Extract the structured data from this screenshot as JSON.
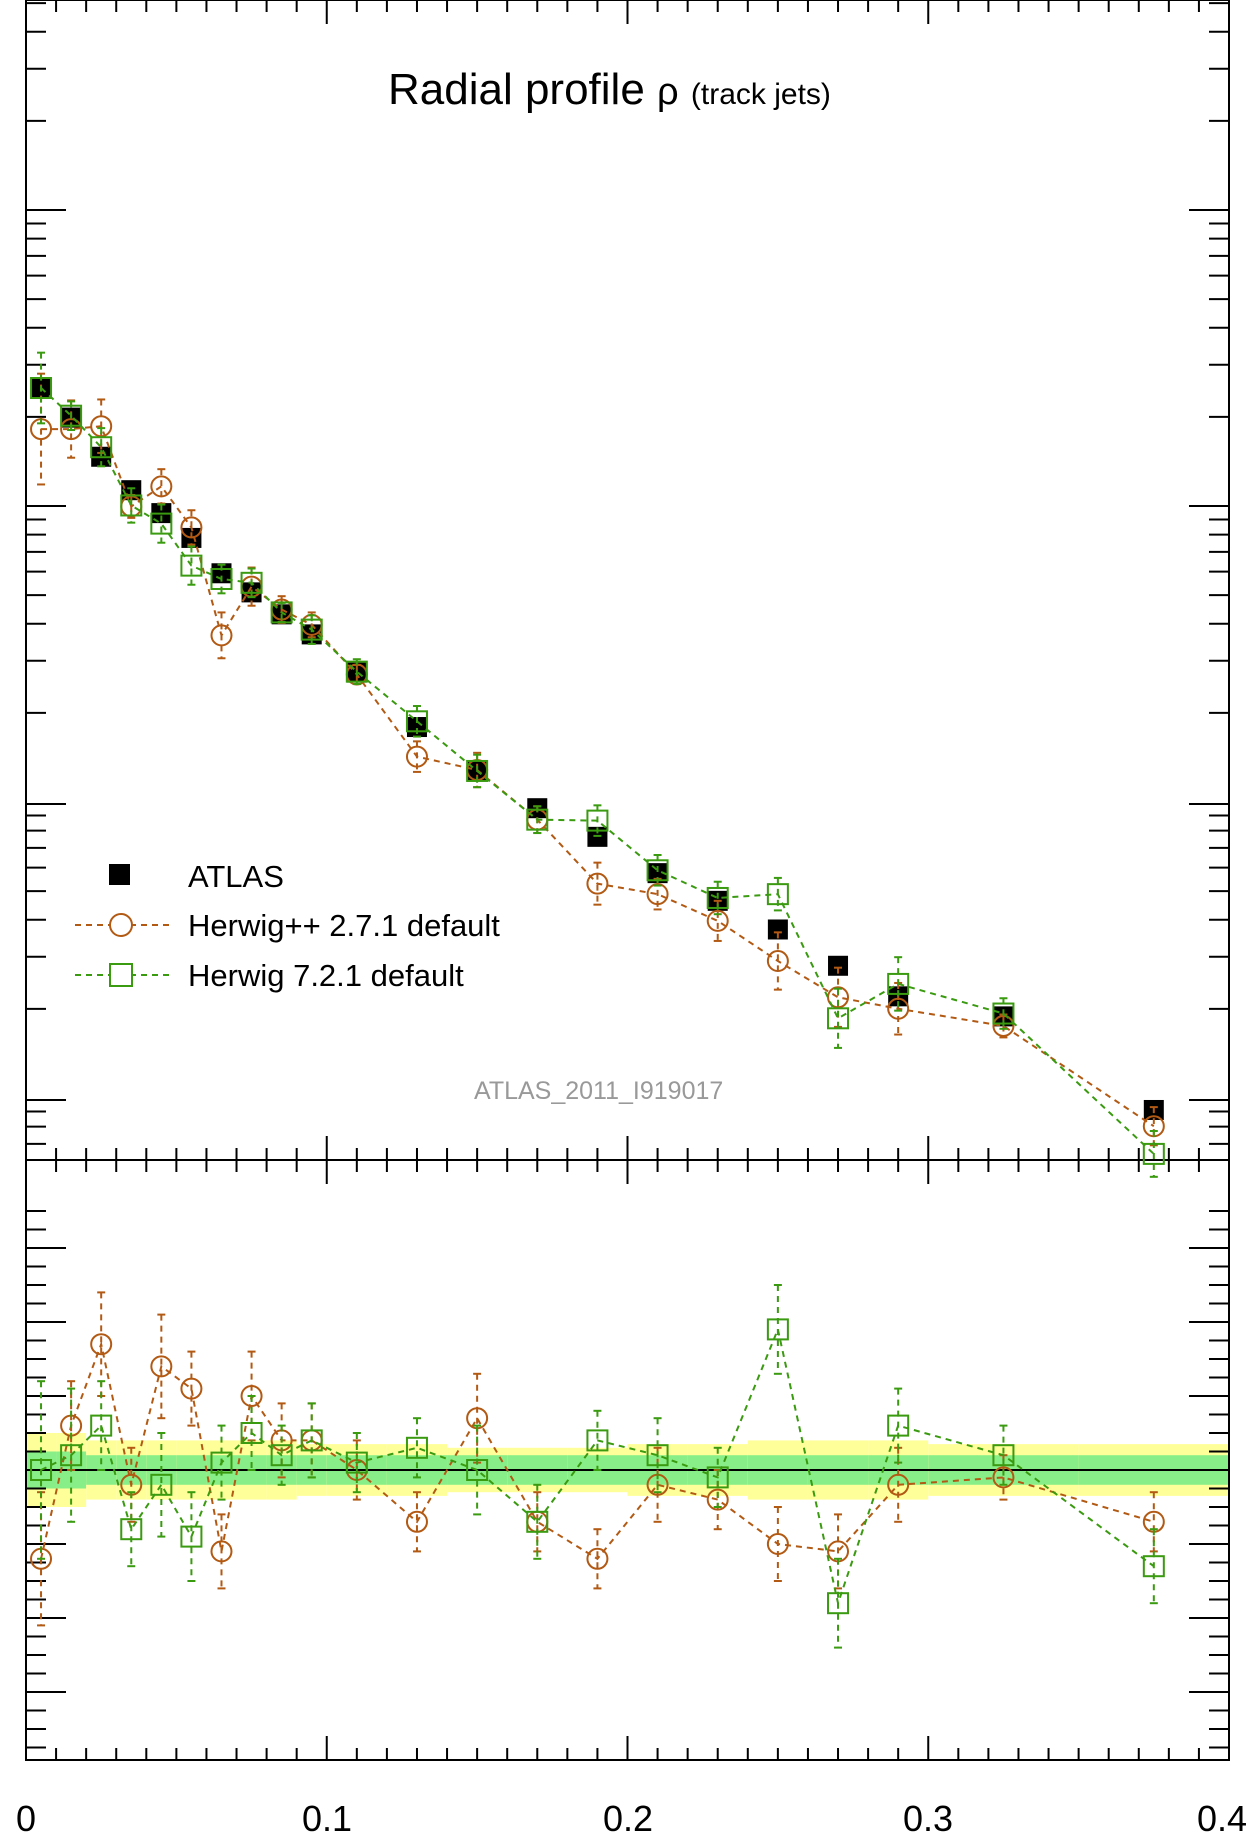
{
  "chart_data": [
    {
      "type": "scatter",
      "panel": "main",
      "title_main": "Radial profile",
      "title_symbol": "ρ",
      "title_sub": "(track jets)",
      "watermark": "ATLAS_2011_I919017",
      "xlim": [
        0,
        0.4
      ],
      "legend_position": "center-left",
      "series": [
        {
          "name": "ATLAS",
          "color": "#000000",
          "marker": "filled-square",
          "x": [
            0.005,
            0.015,
            0.025,
            0.035,
            0.045,
            0.055,
            0.065,
            0.075,
            0.085,
            0.095,
            0.11,
            0.13,
            0.15,
            0.17,
            0.19,
            0.21,
            0.23,
            0.25,
            0.27,
            0.29,
            0.325,
            0.375
          ],
          "y": [
            0.0,
            -0.31,
            -0.72,
            -1.07,
            -1.31,
            -1.57,
            -1.94,
            -2.14,
            -2.37,
            -2.58,
            -2.98,
            -3.55,
            -4.0,
            -4.4,
            -4.7,
            -5.08,
            -5.37,
            -5.67,
            -6.05,
            -6.37,
            -6.58,
            -7.56
          ]
        },
        {
          "name": "Herwig++ 2.7.1 default",
          "color": "#b25a14",
          "marker": "open-circle",
          "x": [
            0.005,
            0.015,
            0.025,
            0.035,
            0.045,
            0.055,
            0.065,
            0.075,
            0.085,
            0.095,
            0.11,
            0.13,
            0.15,
            0.17,
            0.19,
            0.21,
            0.23,
            0.25,
            0.27,
            0.29,
            0.325,
            0.375
          ],
          "y": [
            -0.43,
            -0.43,
            -0.4,
            -1.24,
            -1.03,
            -1.46,
            -2.59,
            -2.08,
            -2.32,
            -2.48,
            -3.0,
            -3.86,
            -4.0,
            -4.52,
            -5.19,
            -5.3,
            -5.58,
            -6.0,
            -6.38,
            -6.5,
            -6.68,
            -7.73
          ],
          "yerr": [
            0.58,
            0.3,
            0.28,
            0.12,
            0.18,
            0.18,
            0.24,
            0.2,
            0.14,
            0.13,
            0.1,
            0.16,
            0.18,
            0.14,
            0.22,
            0.16,
            0.21,
            0.3,
            0.31,
            0.27,
            0.12,
            0.2
          ]
        },
        {
          "name": "Herwig 7.2.1 default",
          "color": "#3a9a10",
          "marker": "open-square",
          "x": [
            0.005,
            0.015,
            0.025,
            0.035,
            0.045,
            0.055,
            0.065,
            0.075,
            0.085,
            0.095,
            0.11,
            0.13,
            0.15,
            0.17,
            0.19,
            0.21,
            0.23,
            0.25,
            0.27,
            0.29,
            0.325,
            0.375
          ],
          "y": [
            0.0,
            -0.29,
            -0.62,
            -1.23,
            -1.42,
            -1.86,
            -2.0,
            -2.04,
            -2.35,
            -2.53,
            -2.97,
            -3.49,
            -4.01,
            -4.52,
            -4.53,
            -5.05,
            -5.34,
            -5.3,
            -6.6,
            -6.24,
            -6.55,
            -8.02
          ],
          "yerr": [
            0.37,
            0.15,
            0.2,
            0.18,
            0.2,
            0.2,
            0.15,
            0.15,
            0.1,
            0.15,
            0.13,
            0.16,
            0.17,
            0.14,
            0.16,
            0.16,
            0.17,
            0.17,
            0.31,
            0.28,
            0.16,
            0.24
          ]
        }
      ]
    },
    {
      "type": "scatter",
      "panel": "ratio",
      "xlim": [
        0,
        0.4
      ],
      "series": [
        {
          "name": "Herwig++ 2.7.1 default",
          "color": "#b25a14",
          "marker": "open-circle",
          "x": [
            0.005,
            0.015,
            0.025,
            0.035,
            0.045,
            0.055,
            0.065,
            0.075,
            0.085,
            0.095,
            0.11,
            0.13,
            0.15,
            0.17,
            0.19,
            0.21,
            0.23,
            0.25,
            0.27,
            0.29,
            0.325,
            0.375
          ],
          "y": [
            0.88,
            1.06,
            1.17,
            0.98,
            1.14,
            1.11,
            0.89,
            1.1,
            1.04,
            1.04,
            1.0,
            0.93,
            1.07,
            0.93,
            0.88,
            0.98,
            0.96,
            0.9,
            0.89,
            0.98,
            0.99,
            0.93
          ],
          "yerr": [
            0.09,
            0.06,
            0.07,
            0.05,
            0.07,
            0.05,
            0.05,
            0.06,
            0.05,
            0.05,
            0.04,
            0.04,
            0.06,
            0.04,
            0.04,
            0.05,
            0.04,
            0.05,
            0.05,
            0.05,
            0.03,
            0.04
          ]
        },
        {
          "name": "Herwig 7.2.1 default",
          "color": "#3a9a10",
          "marker": "open-square",
          "x": [
            0.005,
            0.015,
            0.025,
            0.035,
            0.045,
            0.055,
            0.065,
            0.075,
            0.085,
            0.095,
            0.11,
            0.13,
            0.15,
            0.17,
            0.19,
            0.21,
            0.23,
            0.25,
            0.27,
            0.29,
            0.325,
            0.375
          ],
          "y": [
            1.0,
            1.02,
            1.06,
            0.92,
            0.98,
            0.91,
            1.01,
            1.05,
            1.02,
            1.04,
            1.01,
            1.03,
            1.0,
            0.93,
            1.04,
            1.02,
            0.99,
            1.19,
            0.82,
            1.06,
            1.02,
            0.87
          ],
          "yerr": [
            0.12,
            0.09,
            0.06,
            0.05,
            0.07,
            0.06,
            0.05,
            0.05,
            0.04,
            0.05,
            0.04,
            0.04,
            0.06,
            0.05,
            0.04,
            0.05,
            0.04,
            0.06,
            0.06,
            0.05,
            0.04,
            0.05
          ]
        }
      ]
    }
  ],
  "x_tick_labels": [
    "0",
    "0.1",
    "0.2",
    "0.3",
    "0.4"
  ]
}
